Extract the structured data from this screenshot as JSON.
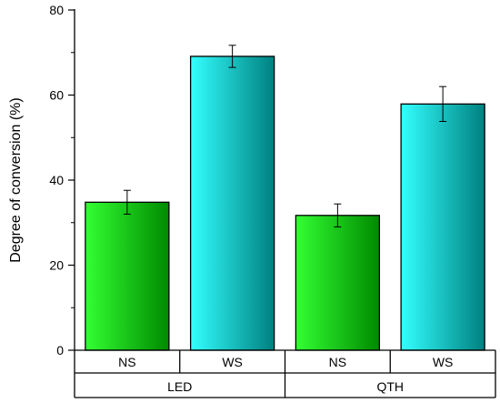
{
  "chart_data": {
    "type": "bar",
    "ylabel": "Degree of conversion (%)",
    "ylim": [
      0,
      80
    ],
    "yticks": [
      0,
      20,
      40,
      60,
      80
    ],
    "grid": false,
    "categories": [
      "NS",
      "WS",
      "NS",
      "WS"
    ],
    "groups": [
      {
        "label": "LED",
        "categories": [
          "NS",
          "WS"
        ]
      },
      {
        "label": "QTH",
        "categories": [
          "NS",
          "WS"
        ]
      }
    ],
    "values": [
      34.8,
      69.1,
      31.7,
      57.9
    ],
    "errors": [
      2.8,
      2.6,
      2.7,
      4.1
    ],
    "colors": {
      "NS": {
        "light": "#33ff33",
        "dark": "#008a00"
      },
      "WS": {
        "light": "#33ffff",
        "dark": "#008080"
      }
    }
  }
}
